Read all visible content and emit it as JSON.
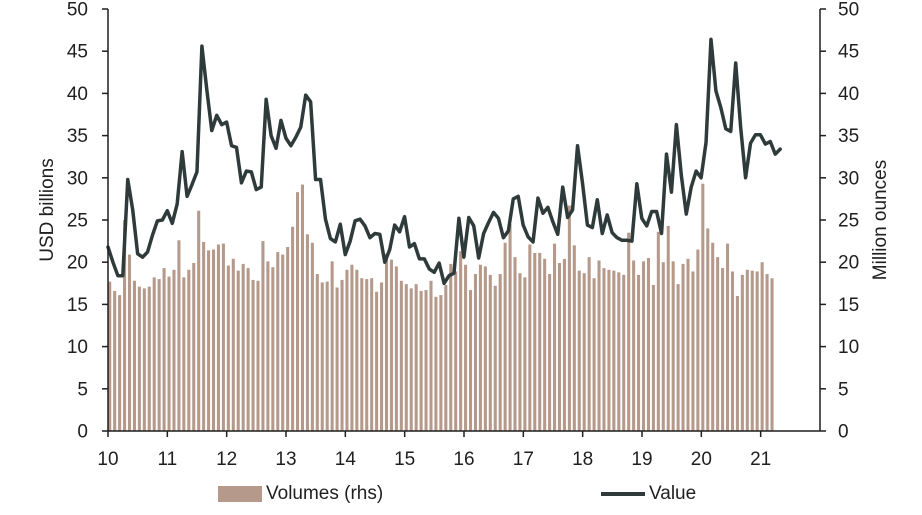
{
  "colors": {
    "bar": "#b5998a",
    "line": "#2f3a3a",
    "axis": "#1f1f1f",
    "text": "#1f1f1f"
  },
  "chart_data": {
    "type": "bar+line",
    "title": "",
    "ylabel_left": "USD billions",
    "ylabel_right": "Million ounces",
    "xlim": [
      10,
      22
    ],
    "ylim_left": [
      0,
      50
    ],
    "ylim_right": [
      0,
      50
    ],
    "x_ticks": [
      "10",
      "11",
      "12",
      "13",
      "14",
      "15",
      "16",
      "17",
      "18",
      "19",
      "20",
      "21"
    ],
    "y_ticks_left": [
      "0",
      "5",
      "10",
      "15",
      "20",
      "25",
      "30",
      "35",
      "40",
      "45",
      "50"
    ],
    "y_ticks_right": [
      "0",
      "5",
      "10",
      "15",
      "20",
      "25",
      "30",
      "35",
      "40",
      "45",
      "50"
    ],
    "grid": false,
    "legend_position": "bottom",
    "series": [
      {
        "name": "Volumes (rhs)",
        "kind": "bar",
        "axis": "right",
        "x_start": 10.0,
        "x_step": 0.0833,
        "values": [
          17.7,
          16.6,
          16.1,
          25,
          20.9,
          17.8,
          17.1,
          16.9,
          17.1,
          18.2,
          18,
          19.3,
          18.3,
          19.1,
          22.6,
          18.2,
          19.1,
          19.9,
          26.1,
          22.4,
          21.4,
          21.5,
          22.1,
          22.2,
          19.6,
          20.4,
          19,
          19.8,
          19.3,
          17.9,
          17.8,
          22.5,
          20.1,
          19.4,
          21.2,
          20.9,
          21.8,
          24.2,
          28.3,
          29.2,
          23.3,
          22.3,
          18.6,
          17.6,
          17.7,
          20.1,
          17,
          17.9,
          19.1,
          19.7,
          19.1,
          18.1,
          18,
          18.1,
          16.5,
          17.6,
          21,
          20.3,
          19.5,
          17.8,
          17.4,
          16.9,
          17.4,
          16.6,
          16.7,
          17.8,
          15.9,
          16.1,
          17.3,
          19.8,
          18.9,
          21.3,
          19.7,
          16.7,
          18.6,
          19.7,
          19.5,
          18.5,
          17.2,
          18.6,
          22.3,
          24.5,
          20.6,
          18.7,
          18.2,
          22.1,
          21.1,
          21.1,
          20.4,
          18.6,
          22.2,
          19.9,
          20.4,
          26.7,
          22,
          19,
          18.7,
          20.6,
          18.1,
          20.2,
          19.3,
          19.1,
          19,
          18.8,
          18.5,
          23.5,
          20.2,
          18.5,
          20.1,
          20.5,
          17.3,
          23.6,
          20,
          24.3,
          20.1,
          17.4,
          19.8,
          20.4,
          18.9,
          21.5,
          29.3,
          24,
          22.3,
          20.6,
          19.3,
          22.2,
          18.9,
          16,
          18.5,
          19.1,
          19,
          18.9,
          20,
          18.6,
          18.1
        ]
      },
      {
        "name": "Value",
        "kind": "line",
        "axis": "left",
        "x_start": 10.0,
        "x_step": 0.0833,
        "values": [
          21.8,
          20,
          18.4,
          18.4,
          29.8,
          26.2,
          21,
          20.6,
          21.2,
          23.2,
          24.9,
          25,
          26.1,
          24.6,
          26.9,
          33.1,
          27.8,
          29.2,
          30.7,
          45.6,
          40.4,
          35.6,
          37.4,
          36.3,
          36.6,
          33.8,
          33.6,
          29.4,
          30.8,
          30.7,
          28.6,
          28.9,
          39.3,
          35,
          33.5,
          36.8,
          34.7,
          33.8,
          34.8,
          36,
          39.8,
          39,
          29.8,
          29.8,
          25.1,
          22.8,
          22.4,
          24.5,
          20.9,
          22.5,
          24.9,
          25.1,
          24.3,
          22.9,
          23.4,
          23.3,
          20,
          21.5,
          24.4,
          23.6,
          25.4,
          21.8,
          22.2,
          20.4,
          20.4,
          19.2,
          18.8,
          19.9,
          17.5,
          18.4,
          18.7,
          25.2,
          20.6,
          25.3,
          24.3,
          20.5,
          23.4,
          24.7,
          25.9,
          25.2,
          22.9,
          23.7,
          27.5,
          27.8,
          24.4,
          23,
          22.4,
          27.6,
          25.8,
          26.5,
          24.8,
          23.3,
          28.9,
          25.3,
          26.2,
          33.8,
          29.4,
          24.4,
          24.1,
          27.4,
          23.4,
          25.6,
          23.5,
          22.9,
          22.6,
          22.6,
          22.5,
          29.3,
          25.2,
          24.3,
          26,
          26,
          23.4,
          32.8,
          28.3,
          36.3,
          30.3,
          25.7,
          28.9,
          30.8,
          30,
          34.2,
          46.4,
          40.3,
          38.3,
          35.8,
          35.5,
          43.6,
          36,
          30,
          34.1,
          35.1,
          35.1,
          34,
          34.3,
          32.8,
          33.4
        ]
      }
    ]
  },
  "legend": {
    "bars_label": "Volumes (rhs)",
    "line_label": "Value"
  }
}
